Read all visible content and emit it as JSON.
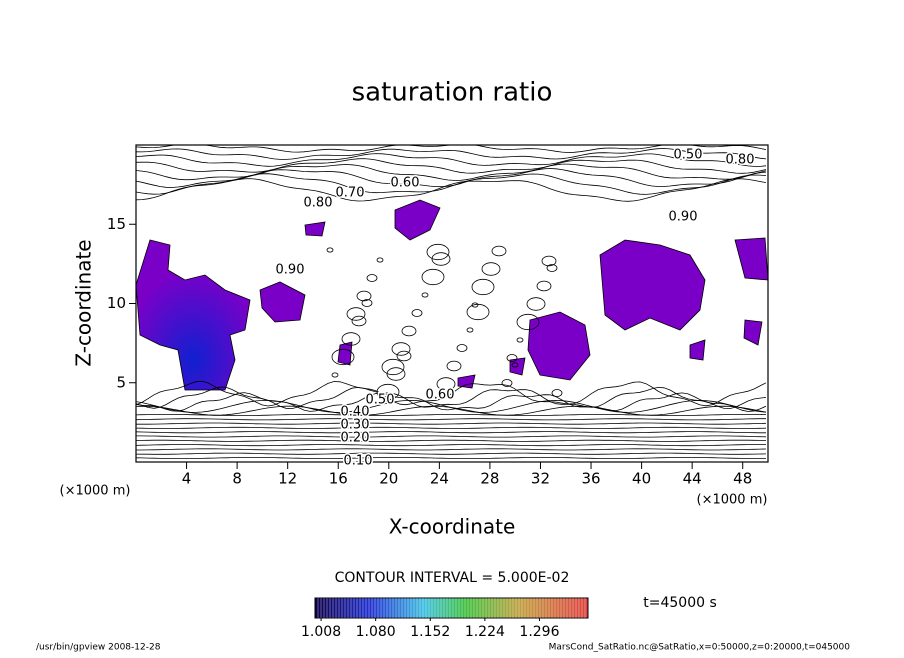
{
  "chart_data": {
    "type": "contour",
    "title": "saturation ratio",
    "xlabel": "X-coordinate",
    "ylabel": "Z-coordinate",
    "x_unit": "(×1000 m)",
    "y_unit": "(×1000 m)",
    "xlim": [
      0,
      50
    ],
    "ylim": [
      0,
      20
    ],
    "xticks": [
      4,
      8,
      12,
      16,
      20,
      24,
      28,
      32,
      36,
      40,
      44,
      48
    ],
    "yticks": [
      5,
      10,
      15
    ],
    "contour_labels": [
      "0.10",
      "0.20",
      "0.30",
      "0.40",
      "0.50",
      "0.60",
      "0.70",
      "0.80",
      "0.90",
      "0.50",
      "0.80",
      "0.90",
      "0.60"
    ],
    "contour_interval": "CONTOUR INTERVAL = 5.000E-02",
    "colorbar": {
      "clim": [
        1.0,
        1.36
      ],
      "ticks": [
        1.008,
        {
          "value": 1.08,
          "label": "1.080"
        },
        1.152,
        1.224,
        1.296
      ]
    },
    "time_label": "t=45000 s",
    "footer_left": "/usr/bin/gpview  2008-12-28",
    "footer_right": "MarsCond_SatRatio.nc@SatRatio,x=0:50000,z=0:20000,t=045000"
  }
}
